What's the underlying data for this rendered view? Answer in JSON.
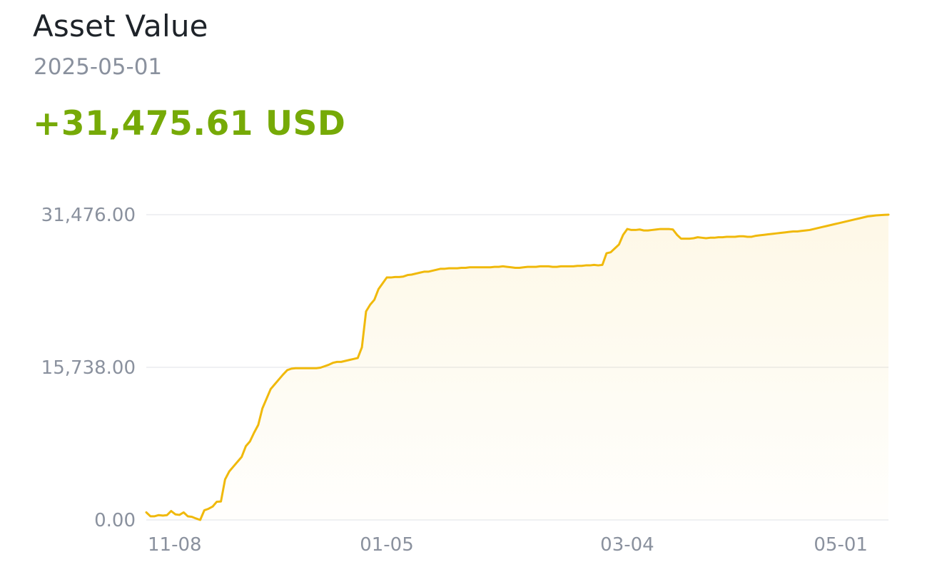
{
  "header": {
    "title": "Asset Value",
    "date": "2025-05-01",
    "change": "+31,475.61 USD"
  },
  "colors": {
    "line": "#f0b90b",
    "positive": "#76aa07",
    "grid": "#eaecef",
    "axis_text": "#8a919e"
  },
  "chart_data": {
    "type": "area",
    "title": "",
    "xlabel": "",
    "ylabel": "",
    "ylim": [
      0,
      31476
    ],
    "y_ticks": [
      {
        "value": 0,
        "label": "0.00"
      },
      {
        "value": 15738,
        "label": "15,738.00"
      },
      {
        "value": 31476,
        "label": "31,476.00"
      }
    ],
    "x_ticks": [
      {
        "index": 0,
        "label": "11-08"
      },
      {
        "index": 58,
        "label": "01-05"
      },
      {
        "index": 116,
        "label": "03-04"
      },
      {
        "index": 174,
        "label": "05-01"
      }
    ],
    "grid": true,
    "values": [
      780,
      380,
      380,
      500,
      450,
      500,
      920,
      580,
      520,
      780,
      380,
      320,
      150,
      0,
      1000,
      1150,
      1380,
      1880,
      1900,
      4180,
      5000,
      5500,
      6000,
      6500,
      7600,
      8100,
      9000,
      9800,
      11500,
      12500,
      13500,
      14000,
      14500,
      15000,
      15450,
      15600,
      15650,
      15650,
      15650,
      15650,
      15650,
      15650,
      15700,
      15850,
      16000,
      16200,
      16300,
      16300,
      16400,
      16500,
      16600,
      16700,
      17800,
      21500,
      22200,
      22700,
      23800,
      24400,
      25000,
      25000,
      25050,
      25050,
      25100,
      25250,
      25300,
      25400,
      25500,
      25600,
      25600,
      25700,
      25800,
      25900,
      25900,
      25950,
      25950,
      25950,
      26000,
      26000,
      26050,
      26050,
      26050,
      26050,
      26050,
      26050,
      26100,
      26100,
      26150,
      26100,
      26050,
      26000,
      26000,
      26050,
      26100,
      26100,
      26100,
      26150,
      26150,
      26150,
      26100,
      26100,
      26150,
      26150,
      26150,
      26150,
      26200,
      26200,
      26250,
      26250,
      26300,
      26250,
      26300,
      27500,
      27600,
      28000,
      28400,
      29400,
      30000,
      29900,
      29900,
      29950,
      29850,
      29850,
      29900,
      29950,
      30000,
      30000,
      30000,
      29950,
      29400,
      29000,
      29000,
      29000,
      29050,
      29150,
      29100,
      29050,
      29100,
      29100,
      29150,
      29150,
      29200,
      29200,
      29200,
      29250,
      29250,
      29200,
      29200,
      29300,
      29350,
      29400,
      29450,
      29500,
      29550,
      29600,
      29650,
      29700,
      29750,
      29750,
      29800,
      29850,
      29900,
      30000,
      30100,
      30200,
      30300,
      30400,
      30500,
      30600,
      30700,
      30800,
      30900,
      31000,
      31100,
      31200,
      31300,
      31350,
      31400,
      31430,
      31460,
      31476
    ]
  }
}
